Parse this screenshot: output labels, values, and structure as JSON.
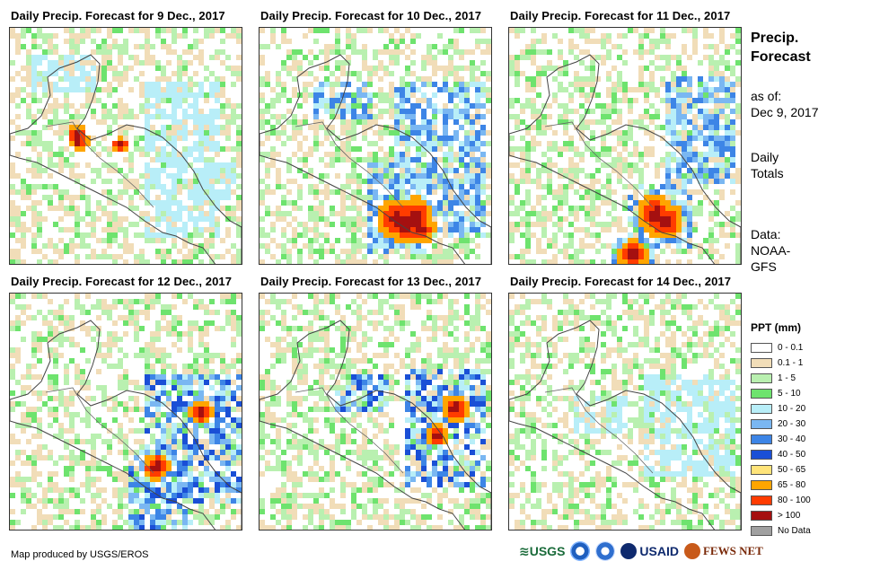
{
  "panels": [
    {
      "title": "Daily Precip. Forecast for 9 Dec., 2017",
      "heavy": [
        [
          72,
          118,
          6
        ],
        [
          73,
          122,
          6
        ],
        [
          120,
          128,
          5
        ]
      ],
      "band": [
        [
          20,
          30,
          90,
          70
        ],
        [
          150,
          60,
          230,
          230
        ],
        [
          200,
          150,
          250,
          190
        ]
      ],
      "bandLevel": 4
    },
    {
      "title": "Daily Precip. Forecast for 10 Dec., 2017",
      "heavy": [
        [
          150,
          210,
          11
        ],
        [
          160,
          215,
          12
        ],
        [
          170,
          205,
          10
        ],
        [
          175,
          220,
          9
        ]
      ],
      "band": [
        [
          150,
          60,
          250,
          230
        ],
        [
          120,
          150,
          190,
          250
        ],
        [
          60,
          60,
          120,
          100
        ]
      ],
      "bandLevel": 6
    },
    {
      "title": "Daily Precip. Forecast for 11 Dec., 2017",
      "heavy": [
        [
          160,
          205,
          11
        ],
        [
          170,
          212,
          11
        ],
        [
          135,
          250,
          9
        ]
      ],
      "band": [
        [
          170,
          50,
          250,
          170
        ],
        [
          130,
          170,
          200,
          240
        ],
        [
          110,
          230,
          160,
          265
        ]
      ],
      "bandLevel": 6
    },
    {
      "title": "Daily Precip. Forecast for 12 Dec., 2017",
      "heavy": [
        [
          160,
          190,
          8
        ],
        [
          210,
          130,
          7
        ]
      ],
      "band": [
        [
          150,
          90,
          255,
          230
        ],
        [
          130,
          170,
          200,
          265
        ]
      ],
      "bandLevel": 7
    },
    {
      "title": "Daily Precip. Forecast for 13 Dec., 2017",
      "heavy": [
        [
          215,
          125,
          8
        ],
        [
          195,
          155,
          6
        ]
      ],
      "band": [
        [
          160,
          80,
          250,
          210
        ],
        [
          80,
          90,
          140,
          130
        ]
      ],
      "bandLevel": 7
    },
    {
      "title": "Daily Precip. Forecast for 14 Dec., 2017",
      "heavy": [],
      "band": [
        [
          150,
          90,
          250,
          200
        ],
        [
          70,
          110,
          130,
          150
        ]
      ],
      "bandLevel": 4
    }
  ],
  "side": {
    "title_line1": "Precip.",
    "title_line2": "Forecast",
    "asof_line1": "as of:",
    "asof_line2": "Dec 9, 2017",
    "daily_line1": "Daily",
    "daily_line2": "Totals",
    "data_line1": "Data:",
    "data_line2": "NOAA-",
    "data_line3": "GFS"
  },
  "legend": {
    "title": "PPT (mm)",
    "items": [
      {
        "label": "0 - 0.1",
        "color": "#ffffff"
      },
      {
        "label": "0.1 - 1",
        "color": "#f1ddb8"
      },
      {
        "label": "1 - 5",
        "color": "#b9f0b0"
      },
      {
        "label": "5 - 10",
        "color": "#6ee36e"
      },
      {
        "label": "10 - 20",
        "color": "#b8eef8"
      },
      {
        "label": "20 - 30",
        "color": "#7ab7f2"
      },
      {
        "label": "30 - 40",
        "color": "#3d85e6"
      },
      {
        "label": "40 - 50",
        "color": "#1a4fd6"
      },
      {
        "label": "50 - 65",
        "color": "#ffe47a"
      },
      {
        "label": "65 - 80",
        "color": "#ffa500"
      },
      {
        "label": "80 - 100",
        "color": "#ff3c00"
      },
      {
        "label": "> 100",
        "color": "#a51010"
      },
      {
        "label": "No Data",
        "color": "#a0a0a0"
      }
    ]
  },
  "credit": "Map produced by USGS/EROS",
  "logos": {
    "usgs": "USGS",
    "usaid": "USAID",
    "fewsnet": "FEWS NET"
  }
}
